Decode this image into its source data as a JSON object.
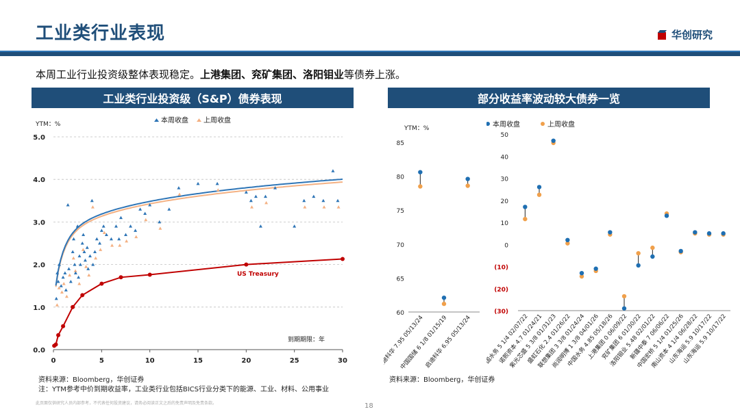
{
  "header": {
    "title": "工业类行业表现",
    "logo_text": "华创研究",
    "logo_color": "#c00000"
  },
  "summary": {
    "prefix": "本周工业行业投资级整体表现稳定。",
    "highlight": "上港集团、兖矿集团、洛阳钼业",
    "suffix": "等债券上涨。"
  },
  "left_panel": {
    "title": "工业类行业投资级（S&P）债券表现"
  },
  "right_panel": {
    "title": "部分收益率波动较大债券一览"
  },
  "colors": {
    "this_week": "#2e75b6",
    "last_week": "#f4b183",
    "blue_dot": "#1f6fb2",
    "orange_dot": "#f0a04b",
    "treasury": "#c00000",
    "navy": "#1f4e79",
    "negative": "#c00000"
  },
  "chart_data": [
    {
      "type": "scatter",
      "ylabel": "YTM：%",
      "xlabel": "到期期限：年",
      "xlim": [
        0,
        30
      ],
      "ylim": [
        0,
        5
      ],
      "xticks": [
        "0",
        "5",
        "10",
        "15",
        "20",
        "25",
        "30"
      ],
      "yticks": [
        "0.0",
        "1.0",
        "2.0",
        "3.0",
        "4.0",
        "5.0"
      ],
      "grid": "horizontal-dashed",
      "legend": {
        "placement": "top-center",
        "entries": [
          "本周收盘",
          "上周收盘"
        ]
      },
      "annotation": "US Treasury",
      "treasury": {
        "name": "US Treasury",
        "x": [
          0.08,
          0.25,
          0.5,
          1,
          2,
          3,
          5,
          7,
          10,
          20,
          30
        ],
        "y": [
          0.09,
          0.12,
          0.34,
          0.55,
          1.0,
          1.28,
          1.55,
          1.7,
          1.76,
          2.0,
          2.13
        ]
      },
      "fit_this_week": {
        "a": 2.6,
        "b": 0.89
      },
      "fit_last_week": {
        "a": 2.55,
        "b": 0.88
      },
      "this_week_points": [
        [
          0.3,
          1.2
        ],
        [
          0.4,
          1.8
        ],
        [
          0.5,
          1.6
        ],
        [
          0.6,
          2.0
        ],
        [
          0.8,
          1.5
        ],
        [
          1.0,
          1.7
        ],
        [
          1.2,
          1.8
        ],
        [
          1.3,
          1.4
        ],
        [
          1.5,
          3.4
        ],
        [
          1.6,
          1.9
        ],
        [
          1.8,
          1.6
        ],
        [
          2.0,
          2.3
        ],
        [
          2.1,
          2.6
        ],
        [
          2.2,
          2.0
        ],
        [
          2.3,
          1.8
        ],
        [
          2.5,
          2.9
        ],
        [
          2.6,
          1.7
        ],
        [
          2.7,
          2.2
        ],
        [
          2.8,
          2.0
        ],
        [
          3.0,
          2.5
        ],
        [
          3.1,
          2.7
        ],
        [
          3.2,
          2.3
        ],
        [
          3.3,
          2.1
        ],
        [
          3.5,
          2.4
        ],
        [
          3.6,
          1.9
        ],
        [
          3.8,
          2.2
        ],
        [
          4.0,
          3.5
        ],
        [
          4.1,
          2.0
        ],
        [
          4.3,
          2.3
        ],
        [
          4.5,
          2.6
        ],
        [
          4.8,
          2.5
        ],
        [
          5.0,
          2.8
        ],
        [
          5.2,
          2.9
        ],
        [
          5.5,
          2.7
        ],
        [
          6.0,
          2.6
        ],
        [
          6.5,
          2.9
        ],
        [
          6.8,
          2.6
        ],
        [
          7.0,
          3.1
        ],
        [
          7.5,
          2.7
        ],
        [
          8.0,
          2.9
        ],
        [
          8.5,
          2.8
        ],
        [
          9.0,
          3.3
        ],
        [
          9.5,
          3.2
        ],
        [
          10.0,
          3.4
        ],
        [
          11.0,
          3.0
        ],
        [
          12.0,
          3.3
        ],
        [
          13.0,
          3.8
        ],
        [
          15.0,
          3.9
        ],
        [
          17.0,
          3.9
        ],
        [
          20.0,
          3.7
        ],
        [
          20.5,
          3.5
        ],
        [
          21.0,
          3.6
        ],
        [
          21.5,
          2.9
        ],
        [
          22.0,
          3.6
        ],
        [
          23.0,
          3.8
        ],
        [
          25.0,
          2.9
        ],
        [
          26.0,
          3.5
        ],
        [
          27.0,
          3.6
        ],
        [
          28.0,
          3.5
        ],
        [
          29.0,
          4.2
        ],
        [
          29.5,
          3.5
        ]
      ],
      "last_week_points": [
        [
          0.3,
          1.1
        ],
        [
          0.5,
          1.5
        ],
        [
          0.8,
          1.4
        ],
        [
          1.0,
          1.6
        ],
        [
          1.3,
          1.3
        ],
        [
          1.6,
          1.8
        ],
        [
          2.0,
          2.2
        ],
        [
          2.2,
          1.9
        ],
        [
          2.6,
          1.6
        ],
        [
          3.0,
          2.4
        ],
        [
          3.3,
          2.0
        ],
        [
          3.6,
          1.8
        ],
        [
          4.0,
          3.4
        ],
        [
          4.3,
          2.2
        ],
        [
          4.8,
          2.4
        ],
        [
          5.2,
          2.8
        ],
        [
          6.0,
          2.5
        ],
        [
          6.8,
          2.5
        ],
        [
          7.5,
          2.6
        ],
        [
          8.5,
          2.7
        ],
        [
          9.5,
          3.1
        ],
        [
          11.0,
          2.9
        ],
        [
          13.0,
          3.7
        ],
        [
          17.0,
          3.8
        ],
        [
          20.5,
          3.4
        ],
        [
          22.0,
          3.5
        ],
        [
          26.0,
          3.4
        ],
        [
          28.0,
          3.4
        ],
        [
          29.5,
          3.4
        ]
      ]
    },
    {
      "type": "dumbbell",
      "ylabel": "YTM：%",
      "ylim": [
        60,
        85
      ],
      "yticks": [
        "60",
        "65",
        "70",
        "75",
        "80",
        "85"
      ],
      "categories": [
        "启迪科华 7.95 05/13/24",
        "中国国储 6 1/8 01/15/19",
        "启迪科华 6.95 05/13/24"
      ],
      "series": [
        {
          "name": "本周收盘",
          "values": [
            80.6,
            62.1,
            79.6
          ]
        },
        {
          "name": "上周收盘",
          "values": [
            78.5,
            61.2,
            78.6
          ]
        }
      ]
    },
    {
      "type": "dumbbell",
      "ylim": [
        -30,
        50
      ],
      "yticks": [
        "50",
        "40",
        "30",
        "20",
        "10",
        "0",
        "(10)",
        "(20)",
        "(30)"
      ],
      "legend": {
        "placement": "top-center",
        "entries": [
          "本周收盘",
          "上周收盘"
        ]
      },
      "categories": [
        "中国水务 5 1/4 02/07/22",
        "诺熙资本 4.7 01/24/21",
        "紫光芯盛 5 3/8 01/31/23",
        "盛虹石化 2.4 01/26/22",
        "联想集团 3 3/8 01/24/24",
        "尚润明博 1 3/8 04/01/26",
        "中国水务 4.85 05/18/26",
        "上港集团 0 06/09/22",
        "兖矿集团 6 01/30/22",
        "洛阳钼业 5.48 02/01/22",
        "新疆中泰 7 06/06/22",
        "中国宏桥 5 1/4 01/25/26",
        "南山资本 4 1/4 06/28/22",
        "山东海运 5.9 10/17/22",
        "山东海运 5.9 10/17/22"
      ],
      "series": [
        {
          "name": "本周收盘",
          "values": [
            17,
            26,
            47,
            2,
            -13,
            -11,
            5.5,
            -29,
            -9.5,
            -5.5,
            13,
            -3,
            5.5,
            5,
            5
          ]
        },
        {
          "name": "上周收盘",
          "values": [
            11.5,
            22.5,
            46,
            0.5,
            -14.5,
            -12,
            4.5,
            -23.5,
            -4,
            -1.5,
            14,
            -3.5,
            5,
            4.5,
            4.5
          ]
        }
      ]
    }
  ],
  "sources": {
    "left_line1": "资料来源：Bloomberg，华创证券",
    "left_line2": "注：YTM参考中价到期收益率，工业类行业包括BICS行业分类下的能源、工业、材料、公用事业",
    "right_line1": "资料来源：Bloomberg，华创证券"
  },
  "disclaimer": "此页面仅供研究人员内部参考，不代表任何投资建议，请务必阅读正文之后的免责声明及免责条款。",
  "page_number": "18"
}
